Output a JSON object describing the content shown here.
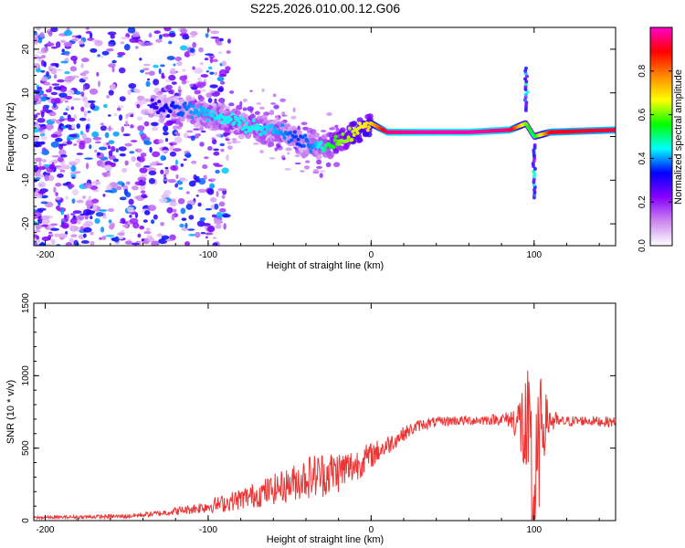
{
  "figure_title": "S225.2026.010.00.12.G06",
  "chart_data": [
    {
      "type": "heatmap",
      "title": "S225.2026.010.00.12.G06",
      "xlabel": "Height of straight line (km)",
      "ylabel": "Frequency (Hz)",
      "xlim": [
        -207,
        150
      ],
      "ylim": [
        -25,
        25
      ],
      "xticks": [
        -200,
        -100,
        0,
        100
      ],
      "xtick_labels": [
        "-200",
        "-100",
        "0",
        "100"
      ],
      "yticks": [
        -20,
        -10,
        0,
        10,
        20
      ],
      "ytick_labels": [
        "-20",
        "-10",
        "0",
        "10",
        "20"
      ],
      "colorbar": {
        "label": "Normalized spectral amplitude",
        "range": [
          0,
          1
        ],
        "ticks": [
          0.0,
          0.2,
          0.4,
          0.6,
          0.8
        ],
        "tick_labels": [
          "0.0",
          "0.2",
          "0.4",
          "0.6",
          "0.8"
        ],
        "colors": [
          "#ffffff",
          "#cc88ee",
          "#8800ff",
          "#0000ff",
          "#00ffff",
          "#00ff00",
          "#ffff00",
          "#ff8800",
          "#ff0000",
          "#ff00cc"
        ]
      },
      "ridge": {
        "x": [
          -130,
          -110,
          -90,
          -70,
          -55,
          -45,
          -35,
          -28,
          -20,
          -10,
          0,
          10,
          30,
          60,
          85,
          95,
          100,
          110,
          150
        ],
        "freq": [
          7,
          6,
          4,
          2,
          1,
          -1,
          -2,
          -2,
          -1,
          1,
          3,
          1,
          1,
          1,
          1.5,
          3,
          0,
          1,
          1.5
        ],
        "amplitude": [
          0.3,
          0.4,
          0.45,
          0.45,
          0.4,
          0.35,
          0.4,
          0.5,
          0.6,
          0.65,
          0.7,
          0.95,
          0.98,
          0.98,
          0.95,
          0.6,
          0.5,
          0.9,
          0.92
        ]
      }
    },
    {
      "type": "line",
      "xlabel": "Height of straight line (km)",
      "ylabel": "SNR (10 * v/v)",
      "xlim": [
        -207,
        150
      ],
      "ylim": [
        0,
        1500
      ],
      "xticks": [
        -200,
        -100,
        0,
        100
      ],
      "xtick_labels": [
        "-200",
        "-100",
        "0",
        "100"
      ],
      "yticks": [
        0,
        500,
        1000,
        1500
      ],
      "ytick_labels": [
        "0",
        "500",
        "1000",
        "1500"
      ],
      "line_color": "#ee3333",
      "series": [
        {
          "name": "SNR",
          "x": [
            -207,
            -180,
            -150,
            -130,
            -110,
            -90,
            -70,
            -50,
            -40,
            -30,
            -20,
            -10,
            0,
            10,
            20,
            30,
            40,
            50,
            60,
            70,
            80,
            85,
            90,
            93,
            96,
            98,
            100,
            102,
            104,
            108,
            115,
            130,
            150
          ],
          "values": [
            20,
            25,
            30,
            50,
            80,
            120,
            180,
            250,
            300,
            320,
            340,
            380,
            450,
            520,
            600,
            660,
            680,
            690,
            690,
            695,
            700,
            700,
            690,
            650,
            500,
            300,
            80,
            300,
            650,
            700,
            680,
            690,
            680
          ],
          "noise": [
            10,
            12,
            15,
            20,
            35,
            60,
            90,
            120,
            150,
            160,
            150,
            120,
            90,
            70,
            50,
            40,
            35,
            35,
            35,
            35,
            40,
            60,
            150,
            350,
            550,
            650,
            700,
            550,
            350,
            150,
            40,
            35,
            35
          ]
        }
      ]
    }
  ]
}
